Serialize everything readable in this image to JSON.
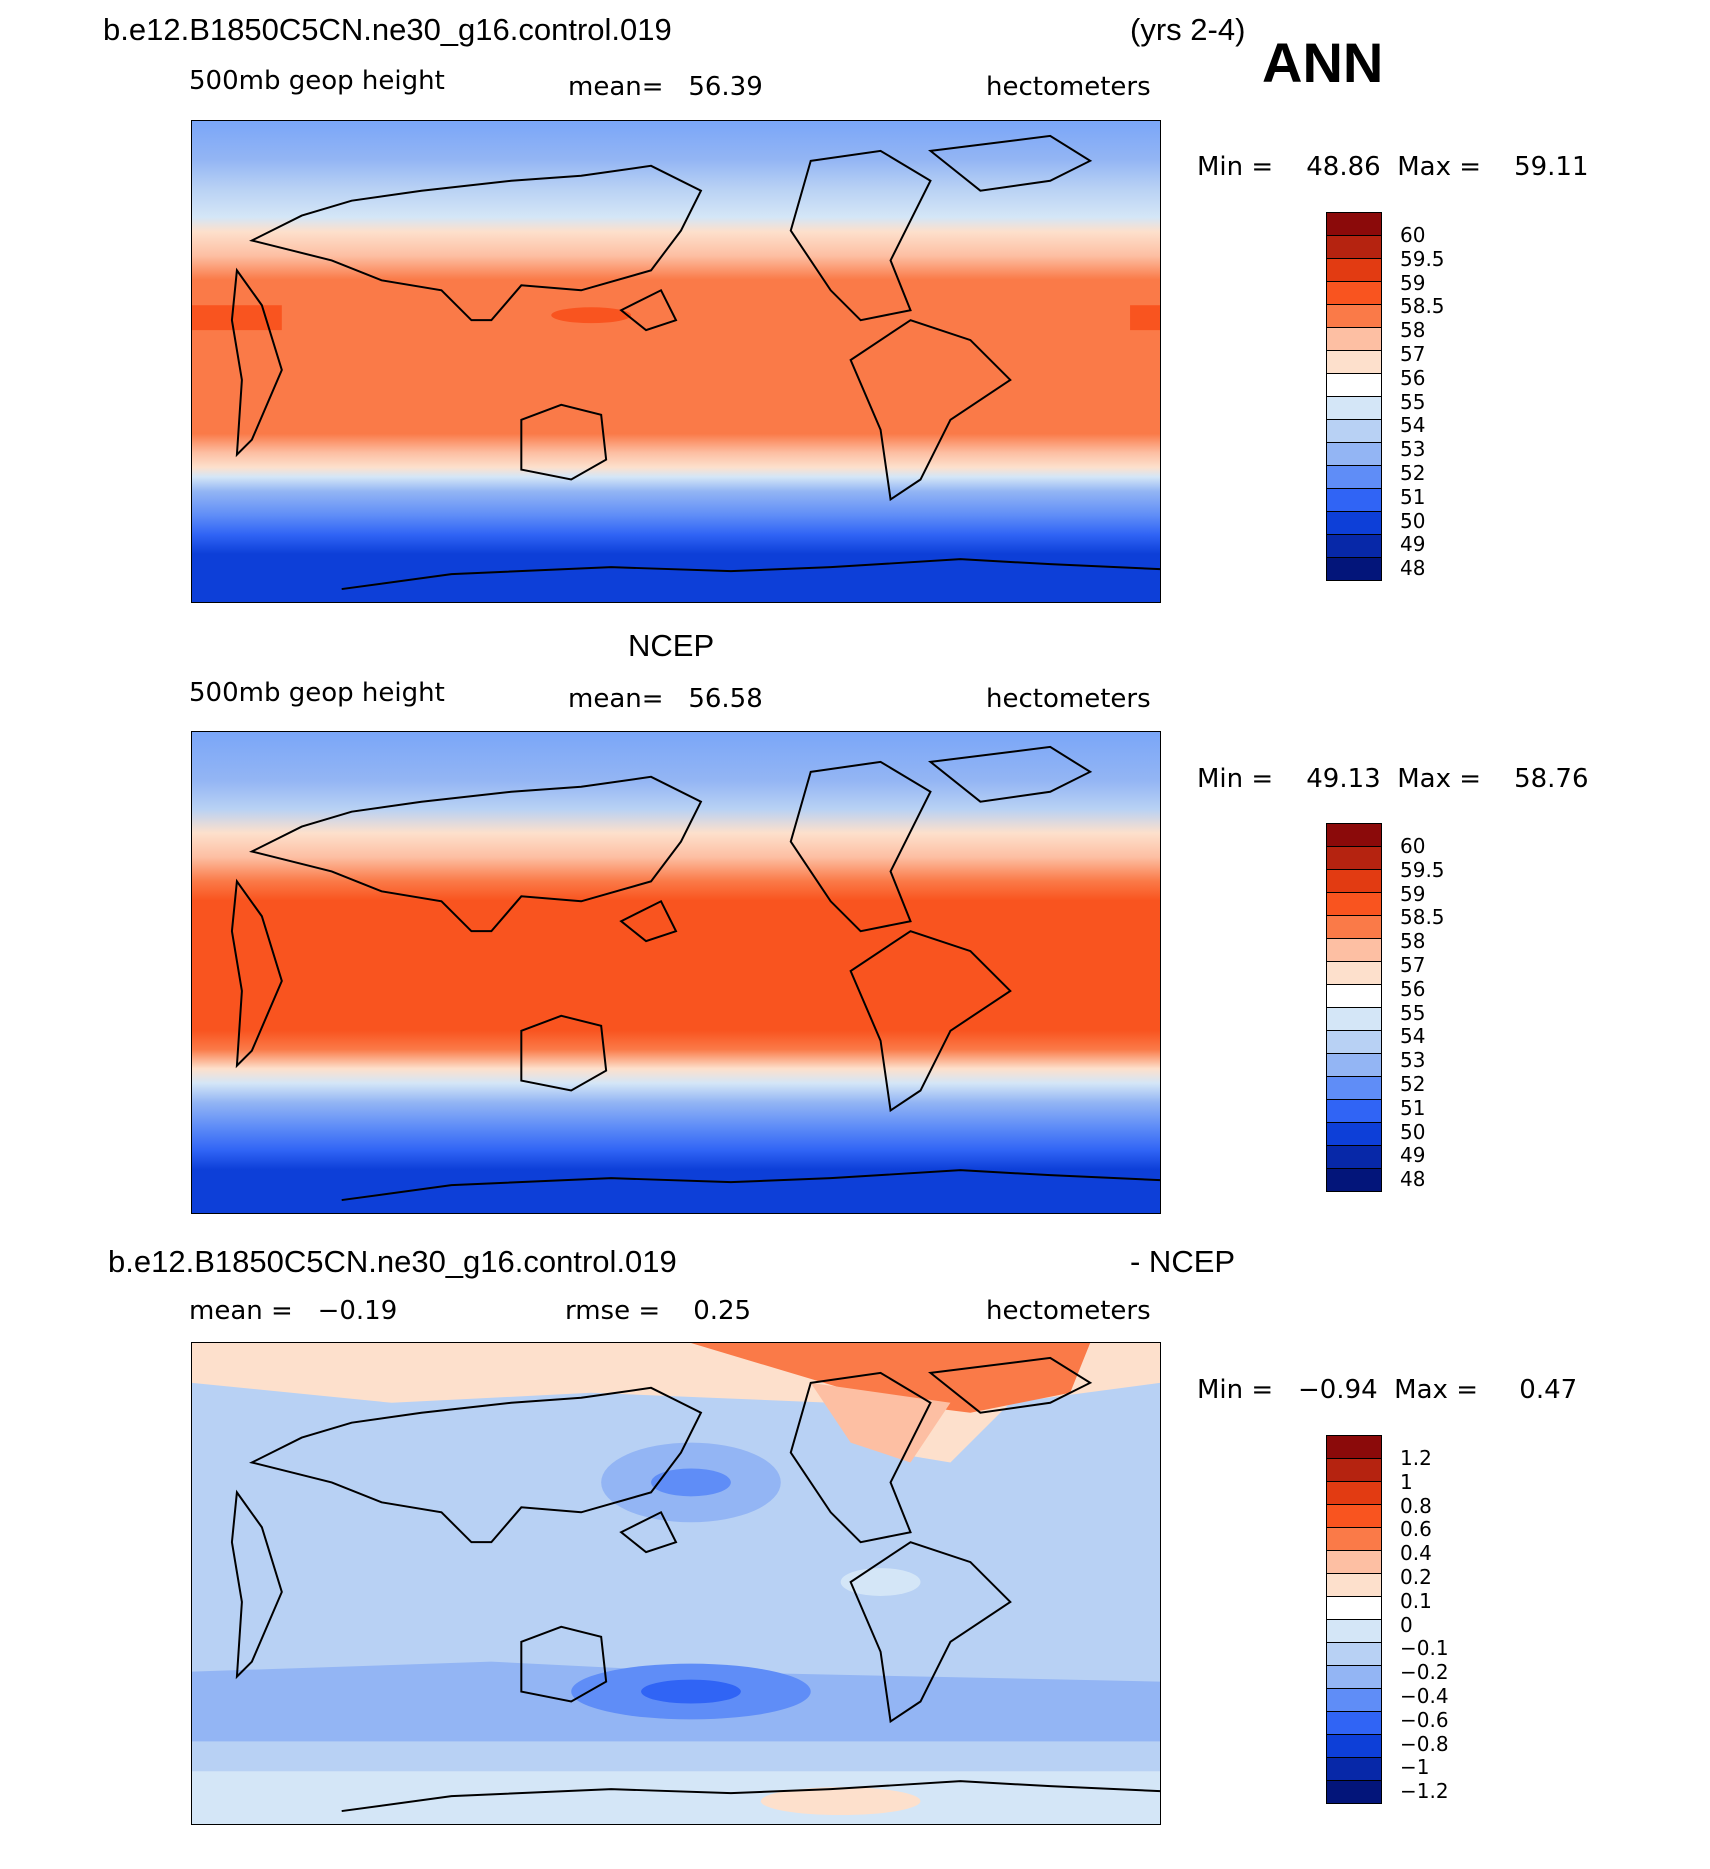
{
  "header": {
    "case_name": "b.e12.B1850C5CN.ne30_g16.control.019",
    "years": "(yrs 2-4)",
    "season": "ANN"
  },
  "panels": [
    {
      "id": "model",
      "title": "",
      "variable": "500mb geop height",
      "stat_text": "mean=   56.39",
      "units": "hectometers",
      "minmax": "Min =    48.86  Max =    59.11",
      "colorbar_labels": [
        "60",
        "59.5",
        "59",
        "58.5",
        "58",
        "57",
        "56",
        "55",
        "54",
        "53",
        "52",
        "51",
        "50",
        "49",
        "48"
      ],
      "colorbar_colors": [
        "#8b0a0a",
        "#b52310",
        "#e23b12",
        "#f9541f",
        "#fa7a48",
        "#fdbfa3",
        "#fde0cc",
        "#ffffff",
        "#d4e6f7",
        "#b8d1f4",
        "#93b5f4",
        "#5f8df7",
        "#3064f5",
        "#0d3fd8",
        "#0728a8",
        "#03157a"
      ],
      "chart_data": {
        "type": "heatmap",
        "title": "500mb geop height",
        "units": "hectometers",
        "mean": 56.39,
        "min": 48.86,
        "max": 59.11,
        "levels": [
          48,
          49,
          50,
          51,
          52,
          53,
          54,
          55,
          56,
          57,
          58,
          58.5,
          59,
          59.5,
          60
        ]
      }
    },
    {
      "id": "obs",
      "title": "NCEP",
      "variable": "500mb geop height",
      "stat_text": "mean=   56.58",
      "units": "hectometers",
      "minmax": "Min =    49.13  Max =    58.76",
      "colorbar_labels": [
        "60",
        "59.5",
        "59",
        "58.5",
        "58",
        "57",
        "56",
        "55",
        "54",
        "53",
        "52",
        "51",
        "50",
        "49",
        "48"
      ],
      "colorbar_colors": [
        "#8b0a0a",
        "#b52310",
        "#e23b12",
        "#f9541f",
        "#fa7a48",
        "#fdbfa3",
        "#fde0cc",
        "#ffffff",
        "#d4e6f7",
        "#b8d1f4",
        "#93b5f4",
        "#5f8df7",
        "#3064f5",
        "#0d3fd8",
        "#0728a8",
        "#03157a"
      ],
      "chart_data": {
        "type": "heatmap",
        "title": "NCEP",
        "units": "hectometers",
        "mean": 56.58,
        "min": 49.13,
        "max": 58.76,
        "levels": [
          48,
          49,
          50,
          51,
          52,
          53,
          54,
          55,
          56,
          57,
          58,
          58.5,
          59,
          59.5,
          60
        ]
      }
    },
    {
      "id": "diff",
      "title_left": "b.e12.B1850C5CN.ne30_g16.control.019",
      "title_right": "- NCEP",
      "mean_text": "mean =   −0.19",
      "rmse_text": "rmse =    0.25",
      "units": "hectometers",
      "minmax": "Min =   −0.94  Max =     0.47",
      "colorbar_labels": [
        "1.2",
        "1",
        "0.8",
        "0.6",
        "0.4",
        "0.2",
        "0.1",
        "0",
        "−0.1",
        "−0.2",
        "−0.4",
        "−0.6",
        "−0.8",
        "−1",
        "−1.2"
      ],
      "colorbar_colors": [
        "#8b0a0a",
        "#b52310",
        "#e23b12",
        "#f9541f",
        "#fa7a48",
        "#fdbfa3",
        "#fde0cc",
        "#ffffff",
        "#d4e6f7",
        "#b8d1f4",
        "#93b5f4",
        "#5f8df7",
        "#3064f5",
        "#0d3fd8",
        "#0728a8",
        "#03157a"
      ],
      "chart_data": {
        "type": "heatmap",
        "units": "hectometers",
        "mean": -0.19,
        "rmse": 0.25,
        "min": -0.94,
        "max": 0.47,
        "levels": [
          -1.2,
          -1,
          -0.8,
          -0.6,
          -0.4,
          -0.2,
          -0.1,
          0,
          0.1,
          0.2,
          0.4,
          0.6,
          0.8,
          1,
          1.2
        ]
      }
    }
  ]
}
